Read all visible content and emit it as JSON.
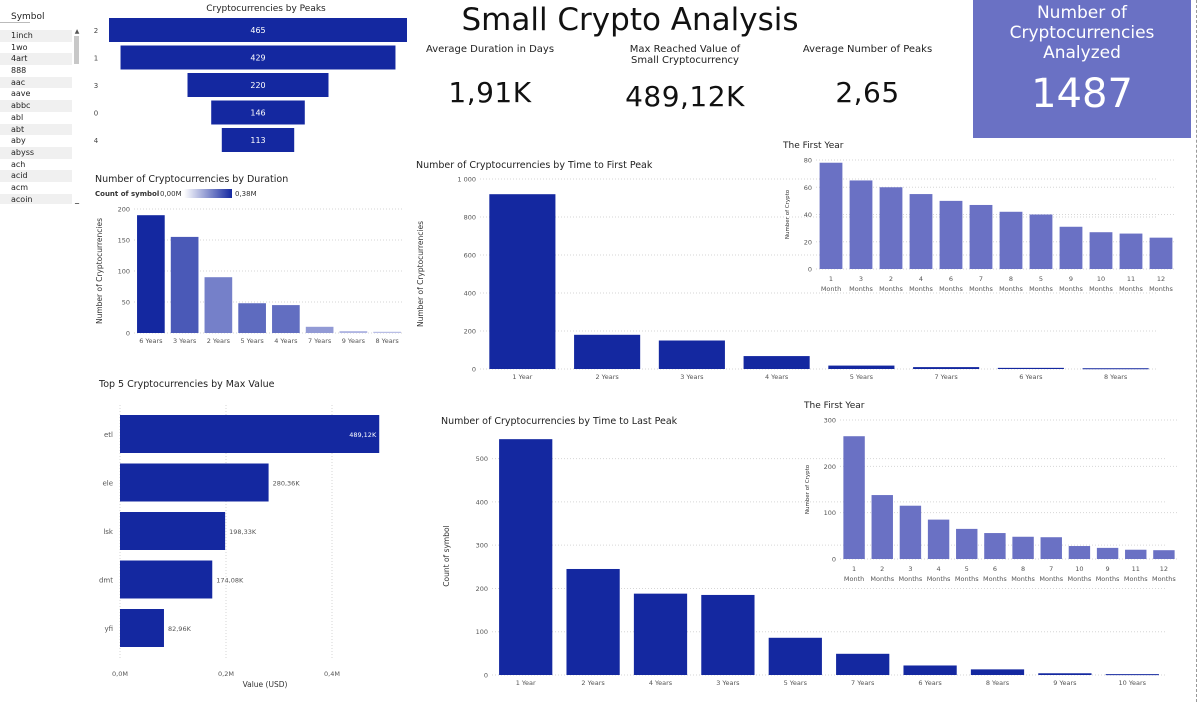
{
  "page": {
    "title": "Small Crypto Analysis"
  },
  "slicer": {
    "header": "Symbol",
    "items": [
      "1inch",
      "1wo",
      "4art",
      "888",
      "aac",
      "aave",
      "abbc",
      "abl",
      "abt",
      "aby",
      "abyss",
      "ach",
      "acid",
      "acm",
      "acoin"
    ]
  },
  "kpis": {
    "avg_duration": {
      "label": "Average Duration in Days",
      "value": "1,91K"
    },
    "max_value": {
      "label_line1": "Max Reached Value of",
      "label_line2": "Small Cryptocurrency",
      "value": "489,12K"
    },
    "avg_peaks": {
      "label": "Average Number of Peaks",
      "value": "2,65"
    },
    "count": {
      "label_line1": "Number of",
      "label_line2": "Cryptocurrencies",
      "label_line3": "Analyzed",
      "value": "1487"
    }
  },
  "colors": {
    "dark_bar": "#1428a0",
    "light_bar": "#6a71c4",
    "card": "#6a71c4"
  },
  "chart_data": [
    {
      "id": "peaks_funnel",
      "type": "bar",
      "title": "Cryptocurrencies by Peaks",
      "categories": [
        "2",
        "1",
        "3",
        "0",
        "4"
      ],
      "values": [
        465,
        429,
        220,
        146,
        113
      ],
      "data_labels": [
        "465",
        "429",
        "220",
        "146",
        "113"
      ]
    },
    {
      "id": "duration",
      "type": "bar",
      "title": "Number of Cryptocurrencies by Duration",
      "legend_title": "Count of symbol",
      "legend_min": "0,00M",
      "legend_max": "0,38M",
      "ylabel": "Number of Cryptocurrencies",
      "categories": [
        "6 Years",
        "3 Years",
        "2 Years",
        "5 Years",
        "4 Years",
        "7 Years",
        "9 Years",
        "8 Years"
      ],
      "values": [
        190,
        155,
        90,
        48,
        45,
        10,
        3,
        2
      ],
      "color_intensity": [
        1.0,
        0.72,
        0.5,
        0.62,
        0.6,
        0.35,
        0.2,
        0.15
      ],
      "ylim": [
        0,
        200
      ],
      "yticks": [
        0,
        50,
        100,
        150,
        200
      ]
    },
    {
      "id": "top5",
      "type": "bar",
      "title": "Top 5 Cryptocurrencies by Max Value",
      "xlabel": "Value (USD)",
      "categories": [
        "etl",
        "ele",
        "lsk",
        "dmt",
        "yfi"
      ],
      "values": [
        489.12,
        280.36,
        198.33,
        174.08,
        82.96
      ],
      "data_labels": [
        "489,12K",
        "280,36K",
        "198,33K",
        "174,08K",
        "82,96K"
      ],
      "xlim": [
        0,
        0.5
      ],
      "xticks": [
        "0,0M",
        "0,2M",
        "0,4M"
      ]
    },
    {
      "id": "first_peak",
      "type": "bar",
      "title": "Number of Cryptocurrencies by Time to First Peak",
      "ylabel": "Number of Cryptocurrencies",
      "categories": [
        "1 Year",
        "2 Years",
        "3 Years",
        "4 Years",
        "5 Years",
        "7 Years",
        "6 Years",
        "8 Years"
      ],
      "values": [
        920,
        180,
        150,
        68,
        18,
        10,
        6,
        4
      ],
      "ylim": [
        0,
        1000
      ],
      "yticks": [
        "0",
        "200",
        "400",
        "600",
        "800",
        "1 000"
      ]
    },
    {
      "id": "first_year_a",
      "type": "bar",
      "title": "The First Year",
      "ylabel": "Number of Crypto",
      "categories": [
        "1 Month",
        "3 Months",
        "2 Months",
        "4 Months",
        "6 Months",
        "7 Months",
        "8 Months",
        "5 Months",
        "9 Months",
        "10 Months",
        "11 Months",
        "12 Months"
      ],
      "values": [
        78,
        65,
        60,
        55,
        50,
        47,
        42,
        40,
        31,
        27,
        26,
        23
      ],
      "ylim": [
        0,
        80
      ],
      "yticks": [
        0,
        20,
        40,
        60,
        80
      ]
    },
    {
      "id": "last_peak",
      "type": "bar",
      "title": "Number of Cryptocurrencies by Time to Last Peak",
      "ylabel": "Count of symbol",
      "categories": [
        "1 Year",
        "2 Years",
        "4 Years",
        "3 Years",
        "5 Years",
        "7 Years",
        "6 Years",
        "8 Years",
        "9 Years",
        "10 Years"
      ],
      "values": [
        545,
        245,
        188,
        185,
        86,
        49,
        22,
        13,
        4,
        2
      ],
      "ylim": [
        0,
        550
      ],
      "yticks": [
        0,
        100,
        200,
        300,
        400,
        500
      ]
    },
    {
      "id": "first_year_b",
      "type": "bar",
      "title": "The First Year",
      "ylabel": "Number of Crypto",
      "categories": [
        "1 Month",
        "2 Months",
        "3 Months",
        "4 Months",
        "5 Months",
        "6 Months",
        "8 Months",
        "7 Months",
        "10 Months",
        "9 Months",
        "11 Months",
        "12 Months"
      ],
      "values": [
        265,
        138,
        115,
        85,
        65,
        56,
        48,
        47,
        28,
        24,
        20,
        19
      ],
      "ylim": [
        0,
        300
      ],
      "yticks": [
        0,
        100,
        200,
        300
      ]
    }
  ]
}
